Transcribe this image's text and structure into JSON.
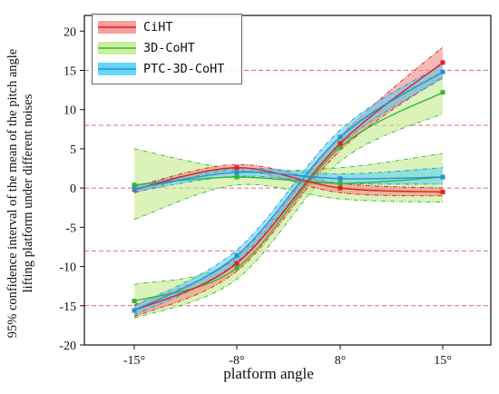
{
  "chart_data": {
    "type": "line",
    "xlabel": "platform angle",
    "ylabel_lines": [
      "95% confidence interval of the mean of the pitch angle",
      "lifting platform under different noises"
    ],
    "x_tick_labels": [
      "-15°",
      "-8°",
      "8°",
      "15°"
    ],
    "x": [
      -15,
      -8,
      8,
      15
    ],
    "ylim": [
      -20,
      22
    ],
    "y_ticks": [
      -20,
      -15,
      -10,
      -5,
      0,
      5,
      10,
      15,
      20
    ],
    "reference_lines": [
      15,
      8,
      0,
      -8,
      -15
    ],
    "legend_position": "top-left",
    "series": [
      {
        "name": "CiHT",
        "color": "#e0211f",
        "fill": "#f47f7f",
        "groups": [
          {
            "mean": [
              -15.6,
              -9.6,
              5.7,
              16.0
            ],
            "lower": [
              -16.4,
              -10.6,
              4.8,
              14.2
            ],
            "upper": [
              -14.9,
              -8.8,
              6.6,
              18.0
            ]
          },
          {
            "mean": [
              -0.2,
              2.6,
              0.0,
              -0.5
            ],
            "lower": [
              -0.6,
              2.2,
              -0.6,
              -1.0
            ],
            "upper": [
              0.2,
              3.0,
              0.6,
              0.0
            ]
          }
        ]
      },
      {
        "name": "3D-CoHT",
        "color": "#32b832",
        "fill": "#c3eb8e",
        "groups": [
          {
            "mean": [
              -14.4,
              -10.2,
              5.2,
              12.2
            ],
            "lower": [
              -16.6,
              -11.6,
              3.4,
              9.5
            ],
            "upper": [
              -12.3,
              -9.0,
              6.6,
              15.0
            ]
          },
          {
            "mean": [
              0.4,
              1.4,
              0.6,
              1.4
            ],
            "lower": [
              -4.0,
              0.4,
              -1.4,
              -1.8
            ],
            "upper": [
              5.0,
              2.4,
              2.6,
              4.4
            ]
          }
        ]
      },
      {
        "name": "PTC-3D-CoHT",
        "color": "#2a8fd8",
        "fill": "#4dd0f5",
        "groups": [
          {
            "mean": [
              -15.6,
              -8.6,
              6.5,
              14.8
            ],
            "lower": [
              -16.2,
              -9.4,
              5.5,
              14.0
            ],
            "upper": [
              -15.0,
              -7.9,
              7.4,
              15.8
            ]
          },
          {
            "mean": [
              -0.1,
              2.0,
              1.2,
              1.4
            ],
            "lower": [
              -0.5,
              1.5,
              0.6,
              0.5
            ],
            "upper": [
              0.3,
              2.5,
              1.8,
              2.6
            ]
          }
        ]
      }
    ]
  }
}
